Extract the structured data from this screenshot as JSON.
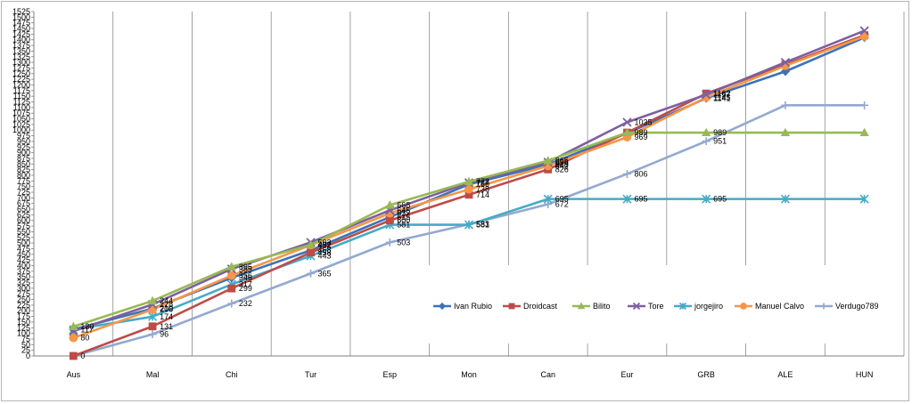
{
  "chart_data": {
    "type": "line",
    "title": "",
    "xlabel": "",
    "ylabel": "",
    "categories": [
      "Aus",
      "Mal",
      "Chi",
      "Tur",
      "Esp",
      "Mon",
      "Can",
      "Eur",
      "GRB",
      "ALE",
      "HUN"
    ],
    "ylim": [
      0,
      1525
    ],
    "ytick_step": 25,
    "grid": "vertical",
    "legend_position": "bottom-right",
    "series": [
      {
        "name": "Ivan Rubio",
        "color": "#3B73B9",
        "marker": "diamond",
        "values": [
          117,
          210,
          346,
          468,
          615,
          760,
          848,
          987,
          1141,
          1260,
          1410
        ]
      },
      {
        "name": "Droidcast",
        "color": "#BE4B48",
        "marker": "square",
        "values": [
          0,
          131,
          299,
          458,
          600,
          714,
          826,
          989,
          1162,
          1290,
          1420
        ]
      },
      {
        "name": "Bilito",
        "color": "#98B954",
        "marker": "triangle",
        "values": [
          130,
          244,
          395,
          492,
          668,
          772,
          865,
          989,
          989,
          989,
          989
        ]
      },
      {
        "name": "Tore",
        "color": "#7D60A0",
        "marker": "x",
        "values": [
          110,
          228,
          385,
          503,
          645,
          767,
          858,
          1035,
          1157,
          1300,
          1440
        ]
      },
      {
        "name": "jorgejiro",
        "color": "#46AAC5",
        "marker": "star",
        "values": [
          117,
          174,
          317,
          443,
          581,
          581,
          695,
          695,
          695,
          695,
          695
        ]
      },
      {
        "name": "Manuel Calvo",
        "color": "#F79646",
        "marker": "circle",
        "values": [
          80,
          206,
          356,
          491,
          632,
          738,
          842,
          969,
          1145,
          1285,
          1415
        ]
      },
      {
        "name": "Verdugo789",
        "color": "#93A9D0",
        "marker": "plus",
        "values": [
          0,
          96,
          232,
          365,
          503,
          583,
          672,
          806,
          951,
          1110,
          1110
        ]
      }
    ],
    "labels": [
      {
        "series": 0,
        "point": 0,
        "text": "117"
      },
      {
        "series": 1,
        "point": 0,
        "text": "0"
      },
      {
        "series": 2,
        "point": 0,
        "text": "130"
      },
      {
        "series": 5,
        "point": 0,
        "text": "80"
      },
      {
        "series": 1,
        "point": 1,
        "text": "131"
      },
      {
        "series": 6,
        "point": 1,
        "text": "96"
      },
      {
        "series": 2,
        "point": 1,
        "text": "244"
      },
      {
        "series": 3,
        "point": 1,
        "text": "228"
      },
      {
        "series": 0,
        "point": 1,
        "text": "210"
      },
      {
        "series": 5,
        "point": 1,
        "text": "206"
      },
      {
        "series": 4,
        "point": 1,
        "text": "174"
      },
      {
        "series": 2,
        "point": 2,
        "text": "395"
      },
      {
        "series": 3,
        "point": 2,
        "text": "385"
      },
      {
        "series": 5,
        "point": 2,
        "text": "356"
      },
      {
        "series": 0,
        "point": 2,
        "text": "346"
      },
      {
        "series": 4,
        "point": 2,
        "text": "317"
      },
      {
        "series": 1,
        "point": 2,
        "text": "299"
      },
      {
        "series": 6,
        "point": 2,
        "text": "232"
      },
      {
        "series": 3,
        "point": 3,
        "text": "503"
      },
      {
        "series": 2,
        "point": 3,
        "text": "492"
      },
      {
        "series": 5,
        "point": 3,
        "text": "491"
      },
      {
        "series": 0,
        "point": 3,
        "text": "468"
      },
      {
        "series": 1,
        "point": 3,
        "text": "458"
      },
      {
        "series": 4,
        "point": 3,
        "text": "443"
      },
      {
        "series": 6,
        "point": 3,
        "text": "365"
      },
      {
        "series": 2,
        "point": 4,
        "text": "668"
      },
      {
        "series": 3,
        "point": 4,
        "text": "645"
      },
      {
        "series": 5,
        "point": 4,
        "text": "632"
      },
      {
        "series": 0,
        "point": 4,
        "text": "615"
      },
      {
        "series": 1,
        "point": 4,
        "text": "600"
      },
      {
        "series": 4,
        "point": 4,
        "text": "581"
      },
      {
        "series": 6,
        "point": 4,
        "text": "503"
      },
      {
        "series": 2,
        "point": 5,
        "text": "772"
      },
      {
        "series": 3,
        "point": 5,
        "text": "767"
      },
      {
        "series": 0,
        "point": 5,
        "text": "760"
      },
      {
        "series": 5,
        "point": 5,
        "text": "738"
      },
      {
        "series": 1,
        "point": 5,
        "text": "714"
      },
      {
        "series": 6,
        "point": 5,
        "text": "583"
      },
      {
        "series": 4,
        "point": 5,
        "text": "581"
      },
      {
        "series": 2,
        "point": 6,
        "text": "865"
      },
      {
        "series": 3,
        "point": 6,
        "text": "858"
      },
      {
        "series": 0,
        "point": 6,
        "text": "848"
      },
      {
        "series": 5,
        "point": 6,
        "text": "842"
      },
      {
        "series": 1,
        "point": 6,
        "text": "826"
      },
      {
        "series": 4,
        "point": 6,
        "text": "695"
      },
      {
        "series": 6,
        "point": 6,
        "text": "672"
      },
      {
        "series": 3,
        "point": 7,
        "text": "1035"
      },
      {
        "series": 1,
        "point": 7,
        "text": "989"
      },
      {
        "series": 5,
        "point": 7,
        "text": "969"
      },
      {
        "series": 6,
        "point": 7,
        "text": "806"
      },
      {
        "series": 4,
        "point": 7,
        "text": "695"
      },
      {
        "series": 1,
        "point": 8,
        "text": "1162"
      },
      {
        "series": 3,
        "point": 8,
        "text": "1157"
      },
      {
        "series": 5,
        "point": 8,
        "text": "1145"
      },
      {
        "series": 0,
        "point": 8,
        "text": "1141"
      },
      {
        "series": 2,
        "point": 8,
        "text": "989"
      },
      {
        "series": 6,
        "point": 8,
        "text": "951"
      },
      {
        "series": 4,
        "point": 8,
        "text": "695"
      }
    ]
  }
}
